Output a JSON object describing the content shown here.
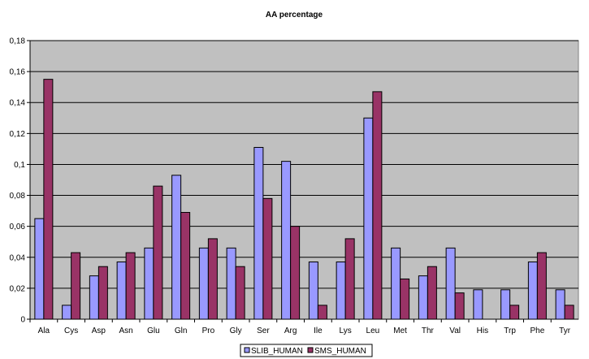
{
  "chart_data": {
    "type": "bar",
    "title": "AA percentage",
    "xlabel": "",
    "ylabel": "",
    "ylim": [
      0,
      0.18
    ],
    "yticks": [
      "0",
      "0,02",
      "0,04",
      "0,06",
      "0,08",
      "0,1",
      "0,12",
      "0,14",
      "0,16",
      "0,18"
    ],
    "ytick_values": [
      0,
      0.02,
      0.04,
      0.06,
      0.08,
      0.1,
      0.12,
      0.14,
      0.16,
      0.18
    ],
    "grid": true,
    "legend_position": "bottom",
    "categories": [
      "Ala",
      "Cys",
      "Asp",
      "Asn",
      "Glu",
      "Gln",
      "Pro",
      "Gly",
      "Ser",
      "Arg",
      "Ile",
      "Lys",
      "Leu",
      "Met",
      "Thr",
      "Val",
      "His",
      "Trp",
      "Phe",
      "Tyr"
    ],
    "series": [
      {
        "name": "SLIB_HUMAN",
        "color": "#9999ff",
        "values": [
          0.065,
          0.009,
          0.028,
          0.037,
          0.046,
          0.093,
          0.046,
          0.046,
          0.111,
          0.102,
          0.037,
          0.037,
          0.13,
          0.046,
          0.028,
          0.046,
          0.019,
          0.019,
          0.037,
          0.019
        ]
      },
      {
        "name": "SMS_HUMAN",
        "color": "#993366",
        "values": [
          0.155,
          0.043,
          0.034,
          0.043,
          0.086,
          0.069,
          0.052,
          0.034,
          0.078,
          0.06,
          0.009,
          0.052,
          0.147,
          0.026,
          0.034,
          0.017,
          0,
          0.009,
          0.043,
          0.009
        ]
      }
    ],
    "plot_background": "#c0c0c0"
  }
}
